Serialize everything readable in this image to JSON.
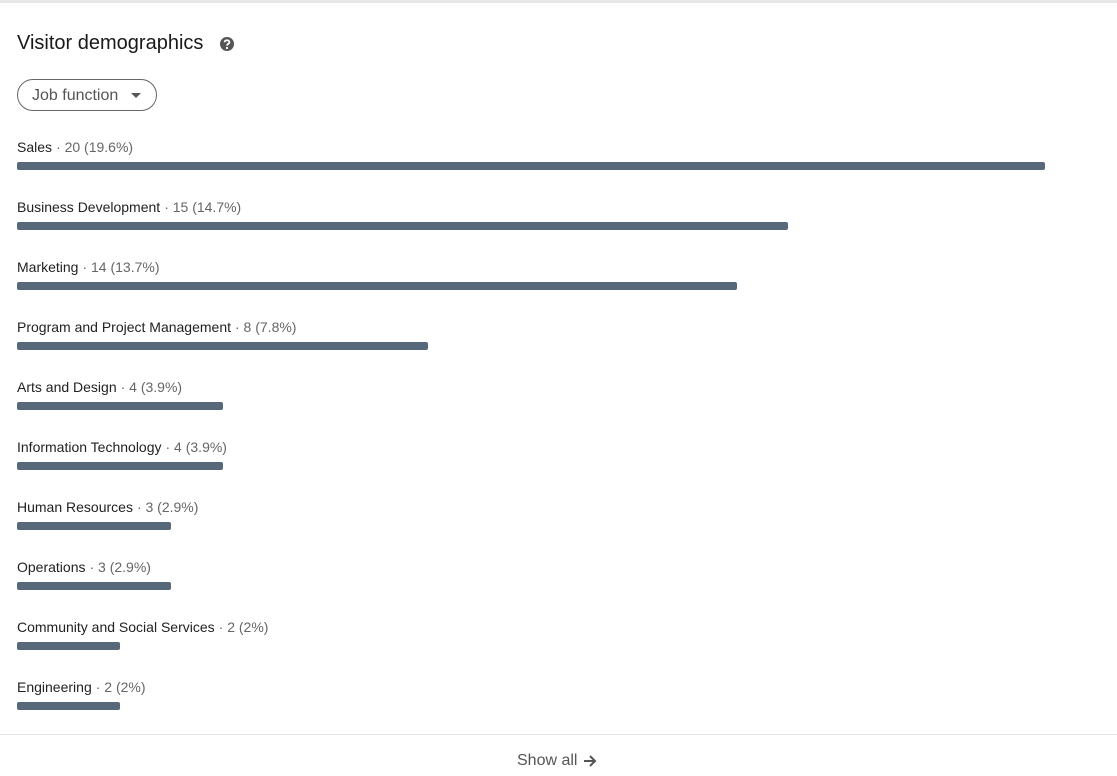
{
  "header": {
    "title": "Visitor demographics"
  },
  "filter": {
    "label": "Job function"
  },
  "items": [
    {
      "label": "Sales",
      "value": 20,
      "value_label": "· 20 (19.6%)"
    },
    {
      "label": "Business Development",
      "value": 15,
      "value_label": "· 15 (14.7%)"
    },
    {
      "label": "Marketing",
      "value": 14,
      "value_label": "· 14 (13.7%)"
    },
    {
      "label": "Program and Project Management",
      "value": 8,
      "value_label": "· 8 (7.8%)"
    },
    {
      "label": "Arts and Design",
      "value": 4,
      "value_label": "· 4 (3.9%)"
    },
    {
      "label": "Information Technology",
      "value": 4,
      "value_label": "· 4 (3.9%)"
    },
    {
      "label": "Human Resources",
      "value": 3,
      "value_label": "· 3 (2.9%)"
    },
    {
      "label": "Operations",
      "value": 3,
      "value_label": "· 3 (2.9%)"
    },
    {
      "label": "Community and Social Services",
      "value": 2,
      "value_label": "· 2 (2%)"
    },
    {
      "label": "Engineering",
      "value": 2,
      "value_label": "· 2 (2%)"
    }
  ],
  "bar_color": "#56687a",
  "footer": {
    "button": "Show all"
  }
}
